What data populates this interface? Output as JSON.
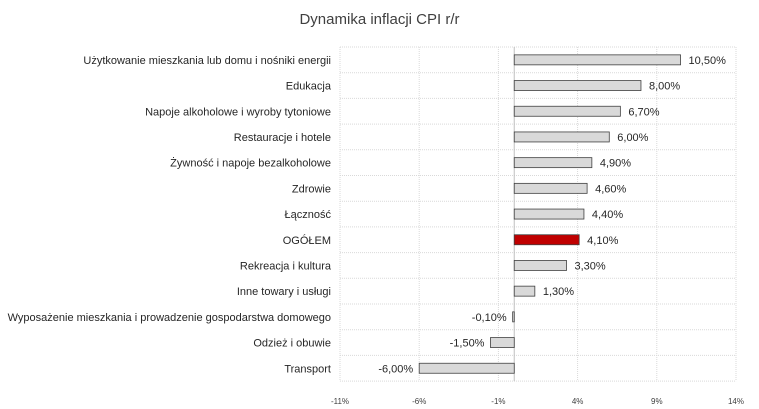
{
  "chart_data": {
    "type": "bar",
    "orientation": "horizontal",
    "title": "Dynamika inflacji CPI r/r",
    "xlabel": "",
    "ylabel": "",
    "categories": [
      "Użytkowanie mieszkania lub domu i nośniki energii",
      "Edukacja",
      "Napoje alkoholowe i wyroby tytoniowe",
      "Restauracje i hotele",
      "Żywność i napoje bezalkoholowe",
      "Zdrowie",
      "Łączność",
      "OGÓŁEM",
      "Rekreacja i kultura",
      "Inne towary i usługi",
      "Wyposażenie mieszkania i prowadzenie gospodarstwa domowego",
      "Odzież i obuwie",
      "Transport"
    ],
    "values": [
      10.5,
      8.0,
      6.7,
      6.0,
      4.9,
      4.6,
      4.4,
      4.1,
      3.3,
      1.3,
      -0.1,
      -1.5,
      -6.0
    ],
    "data_labels": [
      "10,50%",
      "8,00%",
      "6,70%",
      "6,00%",
      "4,90%",
      "4,60%",
      "4,40%",
      "4,10%",
      "3,30%",
      "1,30%",
      "-0,10%",
      "-1,50%",
      "-6,00%"
    ],
    "highlight_category": "OGÓŁEM",
    "xlim": [
      -11,
      14
    ],
    "x_ticks": [
      -11,
      -6,
      -1,
      4,
      9,
      14
    ],
    "x_tick_labels": [
      "-11%",
      "-6%",
      "-1%",
      "4%",
      "9%",
      "14%"
    ],
    "grid": true,
    "legend": "none",
    "colors": {
      "bar_fill": "#d9d9d9",
      "bar_stroke": "#404040",
      "highlight_fill": "#c00000",
      "grid": "#d9d9d9",
      "axis": "#bfbfbf"
    }
  }
}
